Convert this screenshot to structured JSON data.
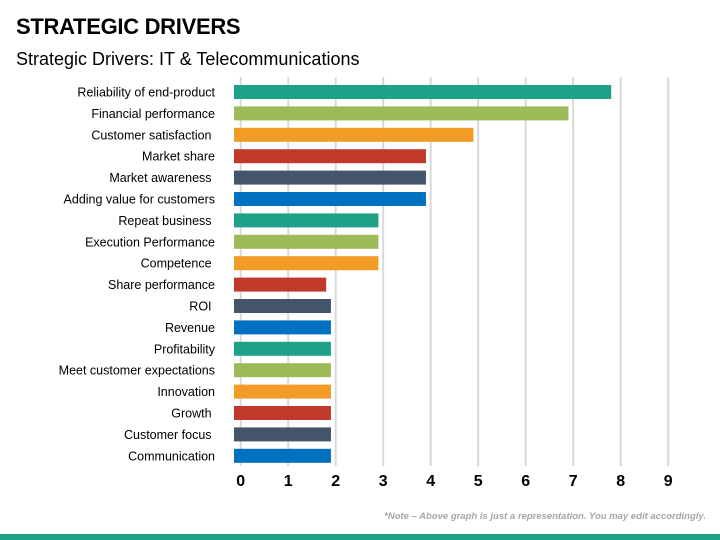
{
  "header": {
    "title": "STRATEGIC DRIVERS",
    "subtitle": "Strategic Drivers: IT & Telecommunications"
  },
  "note": "*Note – Above graph is just a representation. You may edit accordingly.",
  "colors": {
    "footer": "#1fa187",
    "grid": "#d9d9d9"
  },
  "chart_data": {
    "type": "bar",
    "orientation": "horizontal",
    "categories": [
      "Reliability of end-product",
      "Financial performance",
      "Customer satisfaction ",
      "Market share",
      "Market awareness ",
      "Adding value for customers",
      "Repeat business ",
      "Execution Performance",
      "Competence ",
      "Share performance",
      "ROI ",
      "Revenue",
      "Profitability",
      "Meet customer expectations",
      "Innovation",
      "Growth ",
      "Customer focus ",
      "Communication"
    ],
    "values": [
      7.8,
      6.9,
      4.9,
      3.9,
      3.9,
      3.9,
      2.9,
      2.9,
      2.9,
      1.8,
      1.9,
      1.9,
      1.9,
      1.9,
      1.9,
      1.9,
      1.9,
      1.9
    ],
    "bar_colors": [
      "#1fa187",
      "#9bbb59",
      "#f29b26",
      "#c0392b",
      "#44546a",
      "#0070c0"
    ],
    "xlim": [
      0,
      9
    ],
    "xticks": [
      "0",
      "1",
      "2",
      "3",
      "4",
      "5",
      "6",
      "7",
      "8",
      "9"
    ],
    "grid": true,
    "title": "Strategic Drivers: IT & Telecommunications"
  }
}
